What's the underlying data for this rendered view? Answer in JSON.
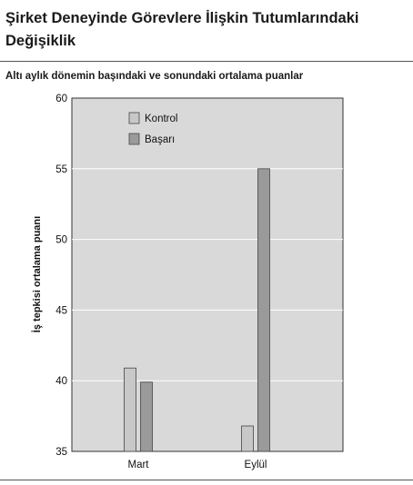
{
  "header": {
    "title": "Şirket Deneyinde Görevlere İlişkin Tutumlarındaki Değişiklik",
    "subtitle": "Altı aylık dönemin başındaki ve sonundaki ortalama puanlar"
  },
  "chart_data": {
    "type": "bar",
    "title": "Şirket Deneyinde Görevlere İlişkin Tutumlarındaki Değişiklik",
    "subtitle": "Altı aylık dönemin başındaki ve sonundaki ortalama puanlar",
    "categories": [
      "Mart",
      "Eylül"
    ],
    "series": [
      {
        "name": "Kontrol",
        "values": [
          40.9,
          36.8
        ],
        "color": "#c8c8c8"
      },
      {
        "name": "Başarı",
        "values": [
          39.9,
          55.0
        ],
        "color": "#9a9a9a"
      }
    ],
    "xlabel": "",
    "ylabel": "İş tepkisi ortalama puanı",
    "ylim": [
      35,
      60
    ],
    "yticks": [
      35,
      40,
      45,
      50,
      55,
      60
    ],
    "grid": true,
    "legend": "top-left",
    "plot_background": "#d9d9d9"
  }
}
